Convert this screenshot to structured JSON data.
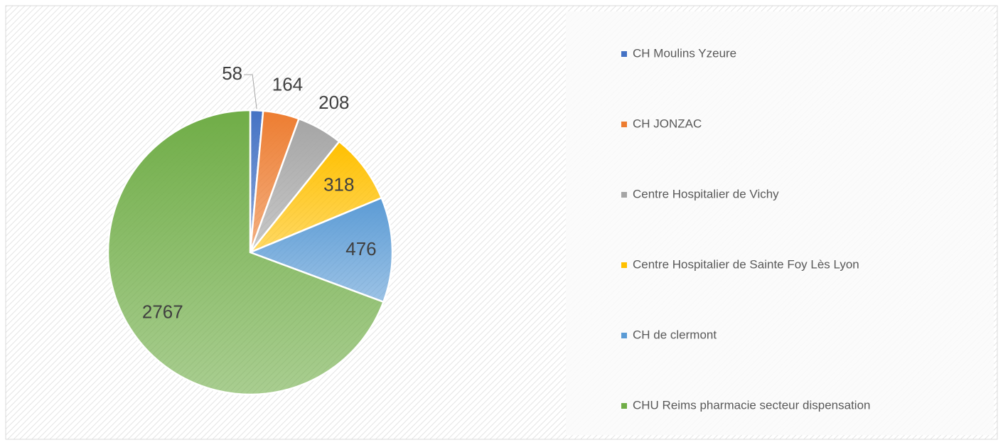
{
  "chart_data": {
    "type": "pie",
    "categories": [
      "CH Moulins Yzeure",
      "CH JONZAC",
      "Centre Hospitalier de Vichy",
      "Centre Hospitalier de Sainte Foy Lès Lyon",
      "CH de clermont",
      "CHU Reims pharmacie secteur dispensation"
    ],
    "values": [
      58,
      164,
      208,
      318,
      476,
      2767
    ],
    "colors": [
      "#4472c4",
      "#ed7d31",
      "#a5a5a5",
      "#ffc000",
      "#5b9bd5",
      "#70ad47"
    ],
    "legend": "right"
  }
}
